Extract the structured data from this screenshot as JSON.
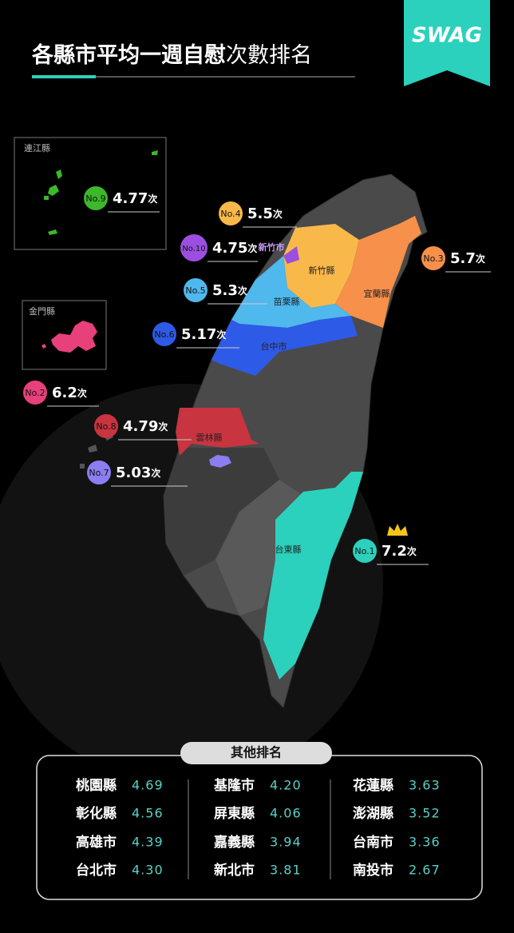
{
  "title": {
    "bold": "各縣市平均一週自慰",
    "light": "次數排名"
  },
  "logo": "SWAG",
  "insets": [
    {
      "label": "連江縣"
    },
    {
      "label": "金門縣"
    }
  ],
  "rankings": [
    {
      "rank": "No.1",
      "value": "7.2",
      "unit": "次",
      "county": "台東縣",
      "color": "#2bd1bc"
    },
    {
      "rank": "No.2",
      "value": "6.2",
      "unit": "次",
      "color": "#e8407a"
    },
    {
      "rank": "No.3",
      "value": "5.7",
      "unit": "次",
      "county": "宜蘭縣",
      "color": "#f7904a"
    },
    {
      "rank": "No.4",
      "value": "5.5",
      "unit": "次",
      "county": "新竹縣",
      "color": "#f9b84a"
    },
    {
      "rank": "No.5",
      "value": "5.3",
      "unit": "次",
      "county": "苗栗縣",
      "color": "#4fb8ec"
    },
    {
      "rank": "No.6",
      "value": "5.17",
      "unit": "次",
      "county": "台中市",
      "color": "#2e5ae8"
    },
    {
      "rank": "No.7",
      "value": "5.03",
      "unit": "次",
      "color": "#8b7ef0"
    },
    {
      "rank": "No.8",
      "value": "4.79",
      "unit": "次",
      "county": "雲林縣",
      "color": "#c8343f"
    },
    {
      "rank": "No.9",
      "value": "4.77",
      "unit": "次",
      "color": "#3cb82a"
    },
    {
      "rank": "No.10",
      "value": "4.75",
      "unit": "次",
      "county": "新竹市",
      "color": "#9b4fe0"
    }
  ],
  "other": {
    "title": "其他排名",
    "columns": [
      [
        [
          "桃園縣",
          "4.69"
        ],
        [
          "彰化縣",
          "4.56"
        ],
        [
          "高雄市",
          "4.39"
        ],
        [
          "台北市",
          "4.30"
        ]
      ],
      [
        [
          "基隆市",
          "4.20"
        ],
        [
          "屏東縣",
          "4.06"
        ],
        [
          "嘉義縣",
          "3.94"
        ],
        [
          "新北市",
          "3.81"
        ]
      ],
      [
        [
          "花蓮縣",
          "3.63"
        ],
        [
          "澎湖縣",
          "3.52"
        ],
        [
          "台南市",
          "3.36"
        ],
        [
          "南投市",
          "2.67"
        ]
      ]
    ]
  }
}
